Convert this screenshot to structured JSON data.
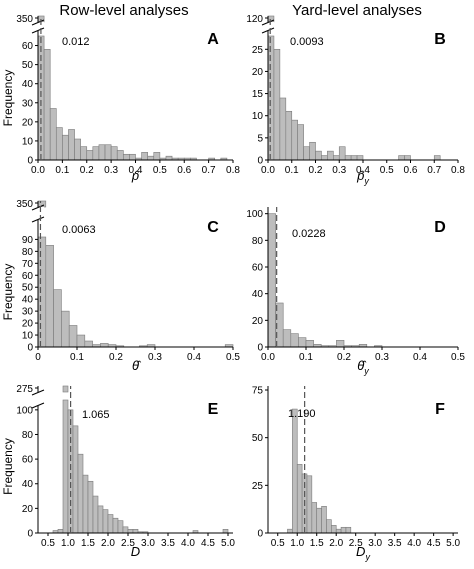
{
  "column_titles": [
    "Row-level analyses",
    "Yard-level analyses"
  ],
  "chart_data": [
    {
      "type": "bar",
      "panel": "A",
      "xlabel": "p̂",
      "ylabel": "Frequency",
      "bin_width": 0.025,
      "xlim": [
        0,
        0.8
      ],
      "ylim": [
        0,
        65
      ],
      "break_value": 350,
      "xticks": [
        "0.0",
        "0.1",
        "0.2",
        "0.3",
        "0.4",
        "0.5",
        "0.6",
        "0.7",
        "0.8"
      ],
      "yticks": [
        "0",
        "10",
        "20",
        "30",
        "40",
        "50",
        "60"
      ],
      "ytick_break_label": "350",
      "bins_start": [
        0,
        0.025,
        0.05,
        0.075,
        0.1,
        0.125,
        0.15,
        0.175,
        0.2,
        0.225,
        0.25,
        0.275,
        0.3,
        0.325,
        0.35,
        0.375,
        0.4,
        0.425,
        0.45,
        0.475,
        0.5,
        0.525,
        0.55,
        0.575,
        0.6,
        0.625,
        0.65,
        0.675,
        0.7,
        0.725,
        0.75
      ],
      "values": [
        350,
        58,
        27,
        17,
        13,
        16,
        11,
        7,
        5,
        7,
        8,
        8,
        7,
        5,
        3,
        3,
        1,
        4,
        2,
        4,
        1,
        2,
        1,
        1,
        1,
        1,
        0,
        0,
        1,
        0,
        1
      ],
      "reference_line": {
        "x": 0.012,
        "label": "0.012"
      }
    },
    {
      "type": "bar",
      "panel": "B",
      "xlabel": "p̂y",
      "ylabel": "",
      "bin_width": 0.025,
      "xlim": [
        0,
        0.8
      ],
      "ylim": [
        0,
        28
      ],
      "break_value": 120,
      "xticks": [
        "0.0",
        "0.1",
        "0.2",
        "0.3",
        "0.4",
        "0.5",
        "0.6",
        "0.7",
        "0.8"
      ],
      "yticks": [
        "0",
        "5",
        "10",
        "15",
        "20",
        "25"
      ],
      "ytick_break_label": "120",
      "bins_start": [
        0,
        0.025,
        0.05,
        0.075,
        0.1,
        0.125,
        0.15,
        0.175,
        0.2,
        0.225,
        0.25,
        0.275,
        0.3,
        0.325,
        0.35,
        0.375,
        0.4,
        0.425,
        0.45,
        0.475,
        0.5,
        0.525,
        0.55,
        0.575,
        0.6,
        0.625,
        0.65,
        0.675,
        0.7
      ],
      "values": [
        120,
        25,
        14,
        11,
        9,
        8,
        3,
        4,
        2,
        1,
        2,
        1,
        3,
        1,
        1,
        1,
        0,
        0,
        0,
        0,
        0,
        0,
        1,
        1,
        0,
        0,
        0,
        0,
        1
      ],
      "reference_line": {
        "x": 0.0093,
        "label": "0.0093"
      }
    },
    {
      "type": "bar",
      "panel": "C",
      "xlabel": "θ̂",
      "ylabel": "Frequency",
      "bin_width": 0.02,
      "xlim": [
        0,
        0.5
      ],
      "ylim": [
        0,
        92
      ],
      "break_value": 350,
      "xticks": [
        "0",
        "0.1",
        "0.2",
        "0.3",
        "0.4",
        "0.5"
      ],
      "yticks": [
        "0",
        "10",
        "20",
        "30",
        "40",
        "50",
        "60",
        "70",
        "80",
        "90"
      ],
      "ytick_break_label": "350",
      "bins_start": [
        0,
        0.02,
        0.04,
        0.06,
        0.08,
        0.1,
        0.12,
        0.14,
        0.16,
        0.18,
        0.2,
        0.22,
        0.24,
        0.26,
        0.28,
        0.3,
        0.32,
        0.34,
        0.36,
        0.38,
        0.4,
        0.42,
        0.44,
        0.46,
        0.48
      ],
      "values": [
        350,
        85,
        48,
        30,
        18,
        10,
        5,
        2,
        3,
        2,
        1,
        0,
        0,
        1,
        2,
        0,
        0,
        0,
        0,
        0,
        0,
        0,
        0,
        0,
        2
      ],
      "reference_line": {
        "x": 0.0063,
        "label": "0.0063"
      }
    },
    {
      "type": "bar",
      "panel": "D",
      "xlabel": "θ̂y",
      "ylabel": "",
      "bin_width": 0.02,
      "xlim": [
        0,
        0.5
      ],
      "ylim": [
        0,
        102
      ],
      "xticks": [
        "0.0",
        "0.1",
        "0.2",
        "0.3",
        "0.4",
        "0.5"
      ],
      "yticks": [
        "0",
        "20",
        "40",
        "60",
        "80",
        "100"
      ],
      "bins_start": [
        0,
        0.02,
        0.04,
        0.06,
        0.08,
        0.1,
        0.12,
        0.14,
        0.16,
        0.18,
        0.2,
        0.22,
        0.24,
        0.26,
        0.28
      ],
      "values": [
        100,
        33,
        13,
        10,
        7,
        5,
        2,
        1,
        1,
        5,
        1,
        1,
        2,
        0,
        1
      ],
      "reference_line": {
        "x": 0.0228,
        "label": "0.0228"
      }
    },
    {
      "type": "bar",
      "panel": "E",
      "xlabel": "D",
      "ylabel": "Frequency",
      "bin_width": 0.125,
      "xlim": [
        0.25,
        5.125
      ],
      "ylim": [
        0,
        108
      ],
      "break_value": 275,
      "xticks": [
        "0.5",
        "1.0",
        "1.5",
        "2.0",
        "2.5",
        "3.0",
        "3.5",
        "4.0",
        "4.5",
        "5.0"
      ],
      "yticks": [
        "0",
        "20",
        "40",
        "60",
        "80",
        "100"
      ],
      "ytick_break_label": "275",
      "bins_start": [
        0.625,
        0.75,
        0.875,
        1.0,
        1.125,
        1.25,
        1.375,
        1.5,
        1.625,
        1.75,
        1.875,
        2.0,
        2.125,
        2.25,
        2.375,
        2.5,
        2.625,
        2.75,
        2.875,
        3.0,
        3.125,
        3.25,
        3.375,
        3.5,
        3.625,
        3.75,
        3.875,
        4.0,
        4.125,
        4.25,
        4.375,
        4.5,
        4.625,
        4.75,
        4.875
      ],
      "values": [
        2,
        3,
        275,
        100,
        87,
        64,
        47,
        42,
        30,
        22,
        19,
        15,
        12,
        10,
        5,
        3,
        3,
        1,
        1,
        0,
        0,
        0,
        0,
        0,
        0,
        0,
        0,
        0,
        2,
        0,
        0,
        0,
        0,
        0,
        3
      ],
      "reference_line": {
        "x": 1.065,
        "label": "1.065"
      }
    },
    {
      "type": "bar",
      "panel": "F",
      "xlabel": "Dy",
      "ylabel": "",
      "bin_width": 0.125,
      "xlim": [
        0.25,
        5.125
      ],
      "ylim": [
        0,
        75
      ],
      "xticks": [
        "0.5",
        "1.0",
        "1.5",
        "2.0",
        "2.5",
        "3.0",
        "3.5",
        "4.0",
        "4.5",
        "5.0"
      ],
      "yticks": [
        "0",
        "25",
        "50",
        "75"
      ],
      "bins_start": [
        0.75,
        0.875,
        1.0,
        1.125,
        1.25,
        1.375,
        1.5,
        1.625,
        1.75,
        1.875,
        2.0,
        2.125,
        2.25
      ],
      "values": [
        2,
        65,
        36,
        31,
        30,
        16,
        13,
        14,
        7,
        4,
        2,
        3,
        3
      ],
      "reference_line": {
        "x": 1.19,
        "label": "1.190"
      }
    }
  ],
  "colors": {
    "bar_fill": "#bdbdbd",
    "bar_stroke": "#7a7a7a",
    "axis": "#000000",
    "ref_line": "#555555"
  }
}
